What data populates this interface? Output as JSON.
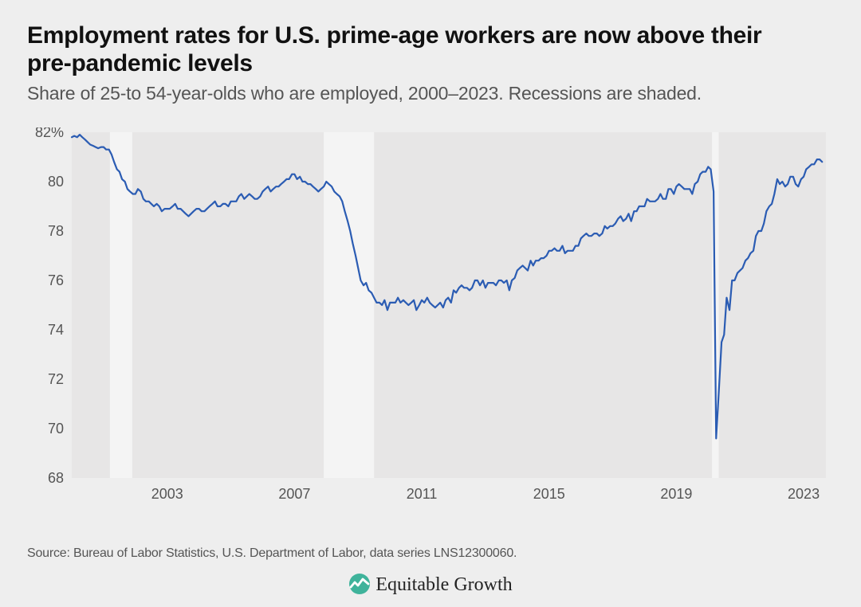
{
  "title": "Employment rates for U.S. prime-age workers are now above their pre-pandemic levels",
  "subtitle": "Share of 25-to 54-year-olds who are employed, 2000–2023. Recessions are shaded.",
  "source": "Source: Bureau of Labor Statistics, U.S. Department of Labor, data series LNS12300060.",
  "brand": "Equitable Growth",
  "chart": {
    "type": "line",
    "background_color": "#eeeeee",
    "plot_background": "#e7e6e6",
    "recession_band_color": "#f4f4f4",
    "line_color": "#2b5cb3",
    "line_width": 2.2,
    "axis_text_color": "#555555",
    "tick_font_size": 18,
    "x": {
      "domain": [
        2000.0,
        2023.7
      ],
      "ticks": [
        2003,
        2007,
        2011,
        2015,
        2019,
        2023
      ],
      "tick_labels": [
        "2003",
        "2007",
        "2011",
        "2015",
        "2019",
        "2023"
      ]
    },
    "y": {
      "domain": [
        68,
        82
      ],
      "ticks": [
        68,
        70,
        72,
        74,
        76,
        78,
        80,
        82
      ],
      "tick_labels": [
        "68",
        "70",
        "72",
        "74",
        "76",
        "78",
        "80",
        "82%"
      ]
    },
    "recessions": [
      {
        "start": 2001.2,
        "end": 2001.9
      },
      {
        "start": 2007.92,
        "end": 2009.5
      },
      {
        "start": 2020.12,
        "end": 2020.33
      }
    ],
    "series": [
      [
        2000.0,
        81.8
      ],
      [
        2000.08,
        81.85
      ],
      [
        2000.17,
        81.8
      ],
      [
        2000.25,
        81.9
      ],
      [
        2000.33,
        81.8
      ],
      [
        2000.42,
        81.7
      ],
      [
        2000.5,
        81.6
      ],
      [
        2000.58,
        81.5
      ],
      [
        2000.67,
        81.45
      ],
      [
        2000.75,
        81.4
      ],
      [
        2000.83,
        81.35
      ],
      [
        2000.92,
        81.4
      ],
      [
        2001.0,
        81.4
      ],
      [
        2001.08,
        81.3
      ],
      [
        2001.17,
        81.3
      ],
      [
        2001.25,
        81.1
      ],
      [
        2001.33,
        80.8
      ],
      [
        2001.42,
        80.5
      ],
      [
        2001.5,
        80.4
      ],
      [
        2001.58,
        80.1
      ],
      [
        2001.67,
        80.0
      ],
      [
        2001.75,
        79.7
      ],
      [
        2001.83,
        79.6
      ],
      [
        2001.92,
        79.5
      ],
      [
        2002.0,
        79.5
      ],
      [
        2002.08,
        79.7
      ],
      [
        2002.17,
        79.6
      ],
      [
        2002.25,
        79.3
      ],
      [
        2002.33,
        79.2
      ],
      [
        2002.42,
        79.2
      ],
      [
        2002.5,
        79.1
      ],
      [
        2002.58,
        79.0
      ],
      [
        2002.67,
        79.1
      ],
      [
        2002.75,
        79.0
      ],
      [
        2002.83,
        78.8
      ],
      [
        2002.92,
        78.9
      ],
      [
        2003.0,
        78.9
      ],
      [
        2003.08,
        78.9
      ],
      [
        2003.17,
        79.0
      ],
      [
        2003.25,
        79.1
      ],
      [
        2003.33,
        78.9
      ],
      [
        2003.42,
        78.9
      ],
      [
        2003.5,
        78.8
      ],
      [
        2003.58,
        78.7
      ],
      [
        2003.67,
        78.6
      ],
      [
        2003.75,
        78.7
      ],
      [
        2003.83,
        78.8
      ],
      [
        2003.92,
        78.9
      ],
      [
        2004.0,
        78.9
      ],
      [
        2004.08,
        78.8
      ],
      [
        2004.17,
        78.8
      ],
      [
        2004.25,
        78.9
      ],
      [
        2004.33,
        79.0
      ],
      [
        2004.42,
        79.1
      ],
      [
        2004.5,
        79.2
      ],
      [
        2004.58,
        79.0
      ],
      [
        2004.67,
        79.0
      ],
      [
        2004.75,
        79.1
      ],
      [
        2004.83,
        79.1
      ],
      [
        2004.92,
        79.0
      ],
      [
        2005.0,
        79.2
      ],
      [
        2005.08,
        79.2
      ],
      [
        2005.17,
        79.2
      ],
      [
        2005.25,
        79.4
      ],
      [
        2005.33,
        79.5
      ],
      [
        2005.42,
        79.3
      ],
      [
        2005.5,
        79.4
      ],
      [
        2005.58,
        79.5
      ],
      [
        2005.67,
        79.4
      ],
      [
        2005.75,
        79.3
      ],
      [
        2005.83,
        79.3
      ],
      [
        2005.92,
        79.4
      ],
      [
        2006.0,
        79.6
      ],
      [
        2006.08,
        79.7
      ],
      [
        2006.17,
        79.8
      ],
      [
        2006.25,
        79.6
      ],
      [
        2006.33,
        79.7
      ],
      [
        2006.42,
        79.8
      ],
      [
        2006.5,
        79.8
      ],
      [
        2006.58,
        79.9
      ],
      [
        2006.67,
        80.0
      ],
      [
        2006.75,
        80.1
      ],
      [
        2006.83,
        80.1
      ],
      [
        2006.92,
        80.3
      ],
      [
        2007.0,
        80.3
      ],
      [
        2007.08,
        80.1
      ],
      [
        2007.17,
        80.2
      ],
      [
        2007.25,
        80.0
      ],
      [
        2007.33,
        80.0
      ],
      [
        2007.42,
        79.9
      ],
      [
        2007.5,
        79.9
      ],
      [
        2007.58,
        79.8
      ],
      [
        2007.67,
        79.7
      ],
      [
        2007.75,
        79.6
      ],
      [
        2007.83,
        79.7
      ],
      [
        2007.92,
        79.8
      ],
      [
        2008.0,
        80.0
      ],
      [
        2008.08,
        79.9
      ],
      [
        2008.17,
        79.8
      ],
      [
        2008.25,
        79.6
      ],
      [
        2008.33,
        79.5
      ],
      [
        2008.42,
        79.4
      ],
      [
        2008.5,
        79.2
      ],
      [
        2008.58,
        78.8
      ],
      [
        2008.67,
        78.4
      ],
      [
        2008.75,
        78.0
      ],
      [
        2008.83,
        77.5
      ],
      [
        2008.92,
        77.0
      ],
      [
        2009.0,
        76.5
      ],
      [
        2009.08,
        76.0
      ],
      [
        2009.17,
        75.8
      ],
      [
        2009.25,
        75.9
      ],
      [
        2009.33,
        75.6
      ],
      [
        2009.42,
        75.5
      ],
      [
        2009.5,
        75.3
      ],
      [
        2009.58,
        75.1
      ],
      [
        2009.67,
        75.1
      ],
      [
        2009.75,
        75.0
      ],
      [
        2009.83,
        75.2
      ],
      [
        2009.92,
        74.8
      ],
      [
        2010.0,
        75.1
      ],
      [
        2010.08,
        75.1
      ],
      [
        2010.17,
        75.1
      ],
      [
        2010.25,
        75.3
      ],
      [
        2010.33,
        75.1
      ],
      [
        2010.42,
        75.2
      ],
      [
        2010.5,
        75.1
      ],
      [
        2010.58,
        75.0
      ],
      [
        2010.67,
        75.1
      ],
      [
        2010.75,
        75.2
      ],
      [
        2010.83,
        74.8
      ],
      [
        2010.92,
        75.0
      ],
      [
        2011.0,
        75.2
      ],
      [
        2011.08,
        75.1
      ],
      [
        2011.17,
        75.3
      ],
      [
        2011.25,
        75.1
      ],
      [
        2011.33,
        75.0
      ],
      [
        2011.42,
        74.9
      ],
      [
        2011.5,
        75.0
      ],
      [
        2011.58,
        75.1
      ],
      [
        2011.67,
        74.9
      ],
      [
        2011.75,
        75.2
      ],
      [
        2011.83,
        75.3
      ],
      [
        2011.92,
        75.1
      ],
      [
        2012.0,
        75.6
      ],
      [
        2012.08,
        75.5
      ],
      [
        2012.17,
        75.7
      ],
      [
        2012.25,
        75.8
      ],
      [
        2012.33,
        75.7
      ],
      [
        2012.42,
        75.7
      ],
      [
        2012.5,
        75.6
      ],
      [
        2012.58,
        75.7
      ],
      [
        2012.67,
        76.0
      ],
      [
        2012.75,
        76.0
      ],
      [
        2012.83,
        75.8
      ],
      [
        2012.92,
        76.0
      ],
      [
        2013.0,
        75.7
      ],
      [
        2013.08,
        75.9
      ],
      [
        2013.17,
        75.9
      ],
      [
        2013.25,
        75.9
      ],
      [
        2013.33,
        75.8
      ],
      [
        2013.42,
        76.0
      ],
      [
        2013.5,
        76.0
      ],
      [
        2013.58,
        75.9
      ],
      [
        2013.67,
        76.0
      ],
      [
        2013.75,
        75.6
      ],
      [
        2013.83,
        76.0
      ],
      [
        2013.92,
        76.1
      ],
      [
        2014.0,
        76.4
      ],
      [
        2014.08,
        76.5
      ],
      [
        2014.17,
        76.6
      ],
      [
        2014.25,
        76.5
      ],
      [
        2014.33,
        76.4
      ],
      [
        2014.42,
        76.8
      ],
      [
        2014.5,
        76.6
      ],
      [
        2014.58,
        76.8
      ],
      [
        2014.67,
        76.8
      ],
      [
        2014.75,
        76.9
      ],
      [
        2014.83,
        76.9
      ],
      [
        2014.92,
        77.0
      ],
      [
        2015.0,
        77.2
      ],
      [
        2015.08,
        77.2
      ],
      [
        2015.17,
        77.3
      ],
      [
        2015.25,
        77.2
      ],
      [
        2015.33,
        77.2
      ],
      [
        2015.42,
        77.4
      ],
      [
        2015.5,
        77.1
      ],
      [
        2015.58,
        77.2
      ],
      [
        2015.67,
        77.2
      ],
      [
        2015.75,
        77.2
      ],
      [
        2015.83,
        77.4
      ],
      [
        2015.92,
        77.4
      ],
      [
        2016.0,
        77.7
      ],
      [
        2016.08,
        77.8
      ],
      [
        2016.17,
        77.9
      ],
      [
        2016.25,
        77.8
      ],
      [
        2016.33,
        77.8
      ],
      [
        2016.42,
        77.9
      ],
      [
        2016.5,
        77.9
      ],
      [
        2016.58,
        77.8
      ],
      [
        2016.67,
        77.9
      ],
      [
        2016.75,
        78.2
      ],
      [
        2016.83,
        78.1
      ],
      [
        2016.92,
        78.2
      ],
      [
        2017.0,
        78.2
      ],
      [
        2017.08,
        78.3
      ],
      [
        2017.17,
        78.5
      ],
      [
        2017.25,
        78.6
      ],
      [
        2017.33,
        78.4
      ],
      [
        2017.42,
        78.5
      ],
      [
        2017.5,
        78.7
      ],
      [
        2017.58,
        78.4
      ],
      [
        2017.67,
        78.8
      ],
      [
        2017.75,
        78.8
      ],
      [
        2017.83,
        79.0
      ],
      [
        2017.92,
        79.0
      ],
      [
        2018.0,
        79.0
      ],
      [
        2018.08,
        79.3
      ],
      [
        2018.17,
        79.2
      ],
      [
        2018.25,
        79.2
      ],
      [
        2018.33,
        79.2
      ],
      [
        2018.42,
        79.3
      ],
      [
        2018.5,
        79.5
      ],
      [
        2018.58,
        79.3
      ],
      [
        2018.67,
        79.3
      ],
      [
        2018.75,
        79.7
      ],
      [
        2018.83,
        79.7
      ],
      [
        2018.92,
        79.5
      ],
      [
        2019.0,
        79.8
      ],
      [
        2019.08,
        79.9
      ],
      [
        2019.17,
        79.8
      ],
      [
        2019.25,
        79.7
      ],
      [
        2019.33,
        79.7
      ],
      [
        2019.42,
        79.7
      ],
      [
        2019.5,
        79.5
      ],
      [
        2019.58,
        79.9
      ],
      [
        2019.67,
        80.0
      ],
      [
        2019.75,
        80.3
      ],
      [
        2019.83,
        80.4
      ],
      [
        2019.92,
        80.4
      ],
      [
        2020.0,
        80.6
      ],
      [
        2020.08,
        80.5
      ],
      [
        2020.17,
        79.6
      ],
      [
        2020.25,
        69.6
      ],
      [
        2020.33,
        71.4
      ],
      [
        2020.42,
        73.5
      ],
      [
        2020.5,
        73.8
      ],
      [
        2020.58,
        75.3
      ],
      [
        2020.67,
        74.8
      ],
      [
        2020.75,
        76.0
      ],
      [
        2020.83,
        76.0
      ],
      [
        2020.92,
        76.3
      ],
      [
        2021.0,
        76.4
      ],
      [
        2021.08,
        76.5
      ],
      [
        2021.17,
        76.8
      ],
      [
        2021.25,
        76.9
      ],
      [
        2021.33,
        77.1
      ],
      [
        2021.42,
        77.2
      ],
      [
        2021.5,
        77.8
      ],
      [
        2021.58,
        78.0
      ],
      [
        2021.67,
        78.0
      ],
      [
        2021.75,
        78.3
      ],
      [
        2021.83,
        78.8
      ],
      [
        2021.92,
        79.0
      ],
      [
        2022.0,
        79.1
      ],
      [
        2022.08,
        79.5
      ],
      [
        2022.17,
        80.1
      ],
      [
        2022.25,
        79.9
      ],
      [
        2022.33,
        80.0
      ],
      [
        2022.42,
        79.8
      ],
      [
        2022.5,
        79.9
      ],
      [
        2022.58,
        80.2
      ],
      [
        2022.67,
        80.2
      ],
      [
        2022.75,
        79.9
      ],
      [
        2022.83,
        79.8
      ],
      [
        2022.92,
        80.1
      ],
      [
        2023.0,
        80.2
      ],
      [
        2023.08,
        80.5
      ],
      [
        2023.17,
        80.6
      ],
      [
        2023.25,
        80.7
      ],
      [
        2023.33,
        80.7
      ],
      [
        2023.42,
        80.9
      ],
      [
        2023.5,
        80.9
      ],
      [
        2023.58,
        80.8
      ]
    ]
  }
}
